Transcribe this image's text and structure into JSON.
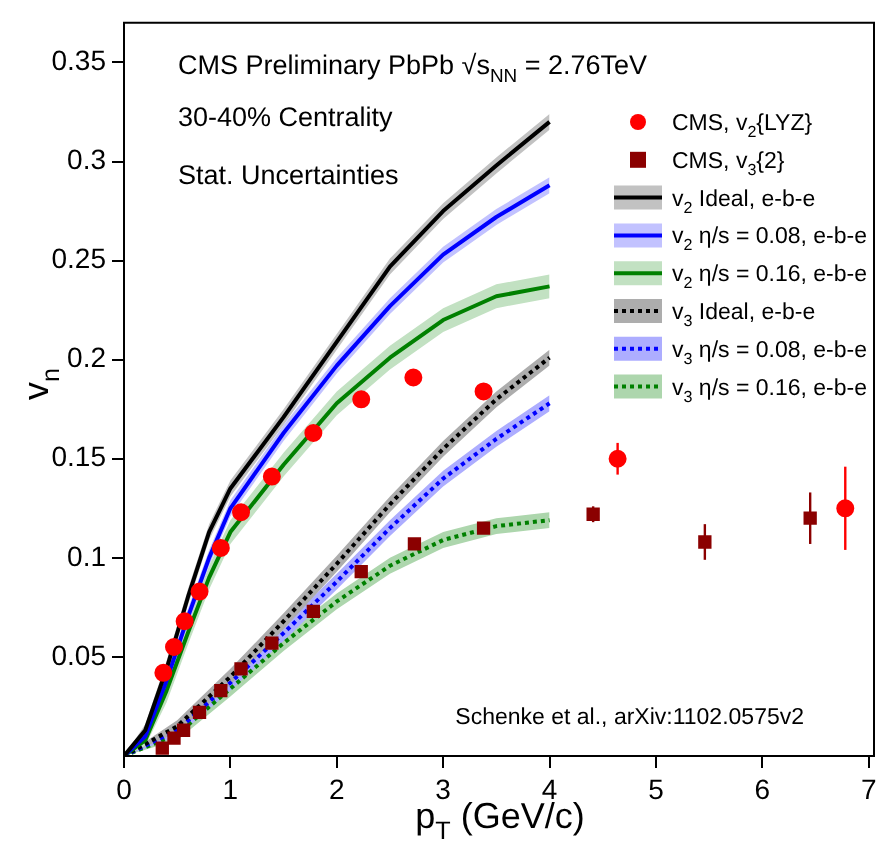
{
  "chart_data": {
    "type": "line",
    "title": "CMS Preliminary PbPb √s$_{NN}$ = 2.76TeV",
    "xlabel": "p$_{T}$ (GeV/c)",
    "ylabel": "v$_{n}$",
    "annotations": [
      "30-40% Centrality",
      "Stat. Uncertainties",
      "Schenke et al., arXiv:1102.0575v2"
    ],
    "xlim": [
      0,
      7.05
    ],
    "ylim": [
      0,
      0.37
    ],
    "xticks": [
      0,
      1,
      2,
      3,
      4,
      5,
      6,
      7
    ],
    "yticks": [
      0.05,
      0.1,
      0.15,
      0.2,
      0.25,
      0.3,
      0.35
    ],
    "grid": false,
    "legend": "top right",
    "series": [
      {
        "name": "CMS, v$_{2}${LYZ}",
        "type": "scatter",
        "marker": "circle",
        "color": "#ff0000",
        "x": [
          0.37,
          0.47,
          0.57,
          0.71,
          0.91,
          1.1,
          1.39,
          1.78,
          2.23,
          2.72,
          3.38,
          4.64,
          6.78
        ],
        "values": [
          0.042,
          0.055,
          0.068,
          0.083,
          0.105,
          0.123,
          0.141,
          0.163,
          0.18,
          0.191,
          0.184,
          0.15,
          0.125
        ],
        "errors": [
          null,
          null,
          null,
          null,
          null,
          null,
          null,
          null,
          null,
          null,
          null,
          0.008,
          0.021
        ]
      },
      {
        "name": "CMS, v$_{3}${2}",
        "type": "scatter",
        "marker": "square",
        "color": "#8b0000",
        "x": [
          0.36,
          0.47,
          0.56,
          0.71,
          0.91,
          1.1,
          1.39,
          1.78,
          2.23,
          2.73,
          3.38,
          4.41,
          5.46,
          6.45
        ],
        "values": [
          0.004,
          0.009,
          0.013,
          0.022,
          0.033,
          0.044,
          0.057,
          0.073,
          0.093,
          0.107,
          0.115,
          0.122,
          0.108,
          0.12
        ],
        "errors": [
          null,
          null,
          null,
          null,
          null,
          null,
          null,
          null,
          null,
          null,
          null,
          0.004,
          0.009,
          0.013
        ]
      },
      {
        "name": "v$_{2}$ Ideal, e-b-e",
        "color": "#000000",
        "line_style": "solid",
        "x": [
          0,
          0.2,
          0.4,
          0.6,
          0.8,
          1.0,
          1.5,
          2.0,
          2.5,
          3.0,
          3.5,
          4.0
        ],
        "values": [
          0,
          0.013,
          0.044,
          0.08,
          0.113,
          0.135,
          0.171,
          0.209,
          0.247,
          0.275,
          0.298,
          0.32
        ],
        "lower": [
          0,
          0.01,
          0.04,
          0.076,
          0.109,
          0.131,
          0.167,
          0.205,
          0.243,
          0.271,
          0.294,
          0.316
        ],
        "upper": [
          0,
          0.016,
          0.048,
          0.084,
          0.117,
          0.139,
          0.175,
          0.213,
          0.251,
          0.279,
          0.302,
          0.324
        ]
      },
      {
        "name": "v$_{2}$ η/s = 0.08, e-b-e",
        "color": "#0000ff",
        "line_style": "solid",
        "x": [
          0,
          0.2,
          0.4,
          0.6,
          0.8,
          1.0,
          1.5,
          2.0,
          2.5,
          3.0,
          3.5,
          4.0
        ],
        "values": [
          0,
          0.01,
          0.038,
          0.07,
          0.1,
          0.125,
          0.163,
          0.197,
          0.227,
          0.253,
          0.272,
          0.288
        ],
        "lower": [
          0,
          0.007,
          0.034,
          0.066,
          0.096,
          0.121,
          0.159,
          0.193,
          0.223,
          0.249,
          0.268,
          0.284
        ],
        "upper": [
          0,
          0.013,
          0.042,
          0.074,
          0.104,
          0.129,
          0.167,
          0.201,
          0.231,
          0.257,
          0.276,
          0.292
        ]
      },
      {
        "name": "v$_{2}$ η/s = 0.16, e-b-e",
        "color": "#008000",
        "line_style": "solid",
        "x": [
          0,
          0.2,
          0.4,
          0.6,
          0.8,
          1.0,
          1.5,
          2.0,
          2.5,
          3.0,
          3.5,
          4.0
        ],
        "values": [
          0,
          0.008,
          0.033,
          0.062,
          0.09,
          0.113,
          0.147,
          0.178,
          0.201,
          0.22,
          0.232,
          0.237
        ],
        "lower": [
          0,
          0.005,
          0.027,
          0.056,
          0.084,
          0.107,
          0.141,
          0.172,
          0.195,
          0.214,
          0.226,
          0.231
        ],
        "upper": [
          0,
          0.011,
          0.039,
          0.068,
          0.096,
          0.119,
          0.153,
          0.184,
          0.207,
          0.226,
          0.238,
          0.243
        ]
      },
      {
        "name": "v$_{3}$ Ideal, e-b-e",
        "color": "#000000",
        "line_style": "dotted",
        "x": [
          0,
          0.5,
          1.0,
          1.5,
          2.0,
          2.5,
          3.0,
          3.5,
          4.0
        ],
        "values": [
          0,
          0.015,
          0.04,
          0.068,
          0.097,
          0.127,
          0.155,
          0.18,
          0.201
        ],
        "lower": [
          0,
          0.012,
          0.036,
          0.064,
          0.093,
          0.123,
          0.151,
          0.176,
          0.197
        ],
        "upper": [
          0,
          0.018,
          0.044,
          0.072,
          0.101,
          0.131,
          0.159,
          0.184,
          0.205
        ]
      },
      {
        "name": "v$_{3}$ η/s = 0.08, e-b-e",
        "color": "#0000ff",
        "line_style": "dotted",
        "x": [
          0,
          0.5,
          1.0,
          1.5,
          2.0,
          2.5,
          3.0,
          3.5,
          4.0
        ],
        "values": [
          0,
          0.013,
          0.037,
          0.062,
          0.088,
          0.115,
          0.14,
          0.16,
          0.178
        ],
        "lower": [
          0,
          0.01,
          0.033,
          0.058,
          0.084,
          0.111,
          0.136,
          0.156,
          0.174
        ],
        "upper": [
          0,
          0.016,
          0.041,
          0.066,
          0.092,
          0.119,
          0.144,
          0.164,
          0.182
        ]
      },
      {
        "name": "v$_{3}$ η/s = 0.16, e-b-e",
        "color": "#008000",
        "line_style": "dotted",
        "x": [
          0,
          0.5,
          1.0,
          1.5,
          2.0,
          2.5,
          3.0,
          3.5,
          4.0
        ],
        "values": [
          0,
          0.011,
          0.034,
          0.057,
          0.078,
          0.096,
          0.109,
          0.116,
          0.119
        ],
        "lower": [
          0,
          0.008,
          0.03,
          0.053,
          0.074,
          0.092,
          0.105,
          0.112,
          0.115
        ],
        "upper": [
          0,
          0.014,
          0.038,
          0.061,
          0.082,
          0.1,
          0.113,
          0.12,
          0.123
        ]
      }
    ]
  }
}
